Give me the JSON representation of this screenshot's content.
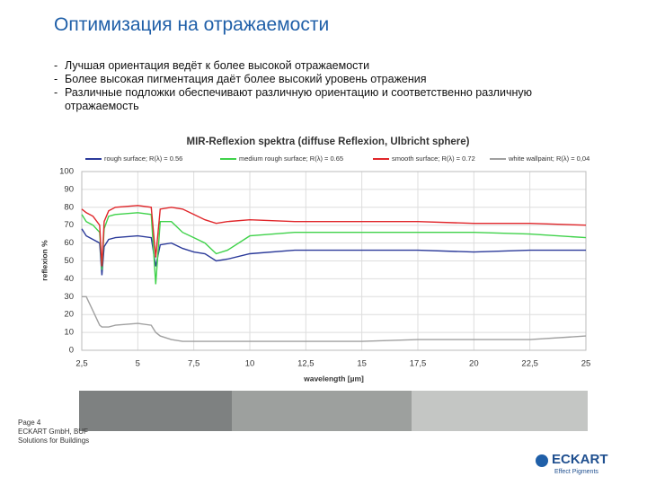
{
  "slide": {
    "title": "Оптимизация на отражаемости",
    "bullets": [
      "Лучшая ориентация ведёт к более высокой отражаемости",
      "Более высокая пигментация даёт более высокий уровень отражения",
      "Различные подложки обеспечивают различную ориентацию и соответственно различную отражаемость"
    ],
    "bullet_marker": "-",
    "footer": [
      "Page 4",
      "ECKART GmbH, BUF",
      "Solutions for Buildings"
    ],
    "logo": "ECKART",
    "logo_tagline": "Effect Pigments"
  },
  "chart_data": {
    "type": "line",
    "title": "MIR-Reflexion spektra (diffuse Reflexion, Ulbricht sphere)",
    "x_label": "wavelength [µm]",
    "y_label": "reflexion %",
    "x": [
      2.5,
      2.7,
      3.0,
      3.3,
      3.4,
      3.5,
      3.7,
      4,
      5,
      5.6,
      5.8,
      6,
      6.5,
      7,
      7.5,
      8,
      8.5,
      9,
      10,
      12,
      15,
      17.5,
      20,
      22.5,
      25
    ],
    "series": [
      {
        "name": "rough surface; R(λ) = 0.56",
        "color": "#2b3a9a",
        "values": [
          68,
          64,
          62,
          60,
          42,
          58,
          62,
          63,
          64,
          63,
          47,
          59,
          60,
          57,
          55,
          54,
          50,
          51,
          54,
          56,
          56,
          56,
          55,
          56,
          56
        ]
      },
      {
        "name": "medium rough surface; R(λ) = 0.65",
        "color": "#3fd24a",
        "values": [
          76,
          72,
          70,
          66,
          45,
          68,
          75,
          76,
          77,
          76,
          37,
          72,
          72,
          66,
          63,
          60,
          54,
          56,
          64,
          66,
          66,
          66,
          66,
          65,
          63
        ]
      },
      {
        "name": "smooth surface; R(λ) = 0.72",
        "color": "#e0262a",
        "values": [
          79,
          77,
          75,
          70,
          47,
          72,
          78,
          80,
          81,
          80,
          52,
          79,
          80,
          79,
          76,
          73,
          71,
          72,
          73,
          72,
          72,
          72,
          71,
          71,
          70
        ]
      },
      {
        "name": "white wallpaint; R(λ) = 0,04",
        "color": "#a0a0a0",
        "values": [
          30,
          30,
          22,
          14,
          13,
          13,
          13,
          14,
          15,
          14,
          10,
          8,
          6,
          5,
          5,
          5,
          5,
          5,
          5,
          5,
          5,
          6,
          6,
          6,
          8
        ]
      }
    ],
    "xlim": [
      2.5,
      25
    ],
    "xticks": [
      {
        "value": 2.5,
        "label": "2,5"
      },
      5,
      {
        "value": 7.5,
        "label": "7,5"
      },
      10,
      {
        "value": 12.5,
        "label": "12,5"
      },
      15,
      {
        "value": 17.5,
        "label": "17,5"
      },
      20,
      {
        "value": 22.5,
        "label": "22,5"
      },
      25
    ],
    "ylim": [
      0,
      100
    ],
    "yticks": [
      0,
      10,
      20,
      30,
      40,
      50,
      60,
      70,
      80,
      90,
      100
    ],
    "grid": true
  }
}
